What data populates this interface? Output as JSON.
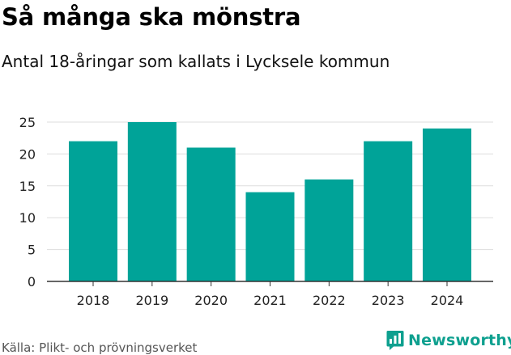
{
  "title": "Så många ska mönstra",
  "subtitle": "Antal 18-åringar som kallats i Lycksele kommun",
  "source": "Källa: Plikt- och prövningsverket",
  "brand": {
    "name": "Newsworthy",
    "icon": "newsworthy-chart-icon",
    "color": "#0ea08f"
  },
  "colors": {
    "bar": "#00a398",
    "grid": "#dddddd",
    "axis": "#333333"
  },
  "chart_data": {
    "type": "bar",
    "title": "Så många ska mönstra",
    "subtitle": "Antal 18-åringar som kallats i Lycksele kommun",
    "xlabel": "",
    "ylabel": "",
    "categories": [
      "2018",
      "2019",
      "2020",
      "2021",
      "2022",
      "2023",
      "2024"
    ],
    "values": [
      22,
      25,
      21,
      14,
      16,
      22,
      24
    ],
    "ylim": [
      0,
      25
    ],
    "yticks": [
      0,
      5,
      10,
      15,
      20,
      25
    ],
    "grid": true,
    "legend": "none"
  }
}
